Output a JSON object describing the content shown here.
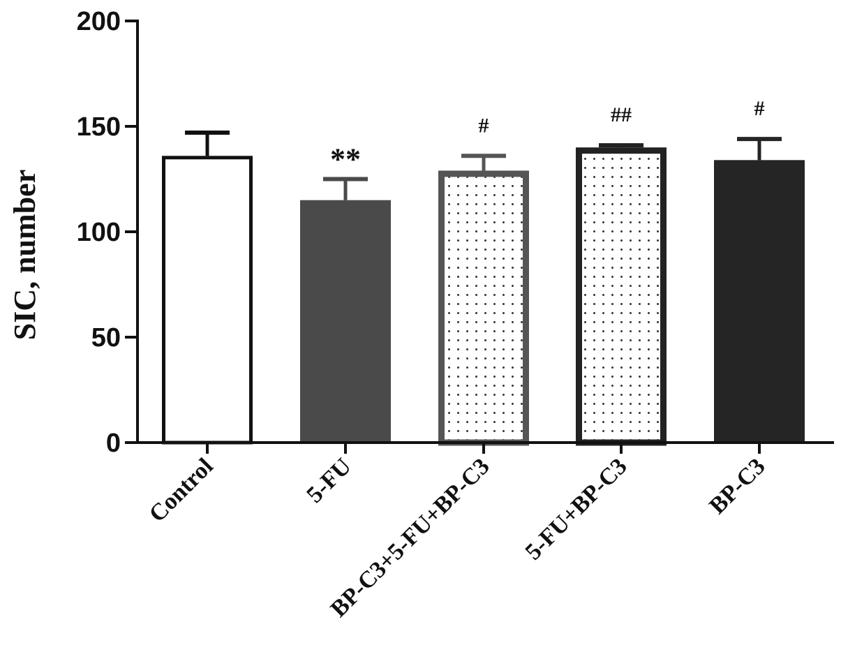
{
  "chart_data": {
    "type": "bar",
    "title": "",
    "xlabel": "",
    "ylabel": "SIC, number",
    "ylim": [
      0,
      200
    ],
    "yticks": [
      0,
      50,
      100,
      150,
      200
    ],
    "grid": false,
    "legend": "none",
    "categories": [
      "Control",
      "5-FU",
      "BP-C3+5-FU+BP-C3",
      "5-FU+BP-C3",
      "BP-C3"
    ],
    "values": [
      136,
      115,
      129,
      140,
      134
    ],
    "errors": [
      11,
      10,
      7,
      1,
      10
    ],
    "annotations": [
      "",
      "**",
      "#",
      "##",
      "#"
    ],
    "styles": [
      {
        "fill": "#ffffff",
        "stroke": "#111111",
        "pattern": "none"
      },
      {
        "fill": "#4a4a4a",
        "stroke": "#4a4a4a",
        "pattern": "none"
      },
      {
        "fill": "#ffffff",
        "stroke": "#555555",
        "pattern": "dots"
      },
      {
        "fill": "#ffffff",
        "stroke": "#222222",
        "pattern": "dots"
      },
      {
        "fill": "#252525",
        "stroke": "#252525",
        "pattern": "none"
      }
    ]
  }
}
